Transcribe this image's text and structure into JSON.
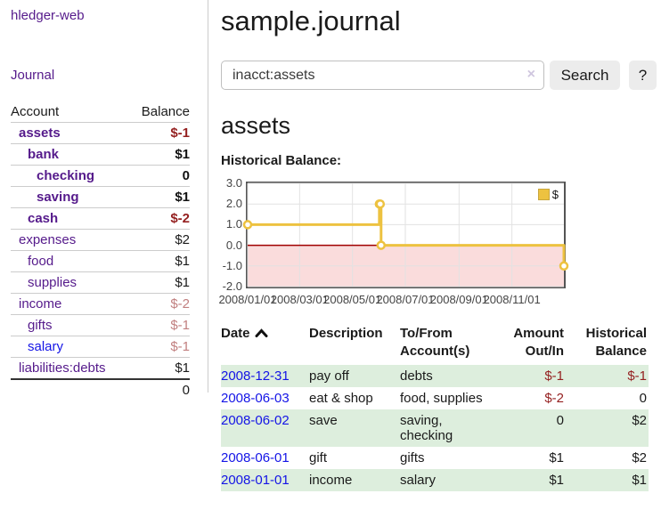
{
  "sidebar": {
    "app_title": "hledger-web",
    "journal_label": "Journal",
    "table": {
      "headers": [
        "Account",
        "Balance"
      ],
      "rows": [
        {
          "name": "assets",
          "indent": 1,
          "bold": true,
          "link": "purple",
          "balance": "$-1",
          "balance_style": "neg-strong"
        },
        {
          "name": "bank",
          "indent": 2,
          "bold": true,
          "link": "purple",
          "balance": "$1",
          "balance_style": "pos-strong"
        },
        {
          "name": "checking",
          "indent": 3,
          "bold": true,
          "link": "purple",
          "balance": "0",
          "balance_style": "pos-strong"
        },
        {
          "name": "saving",
          "indent": 3,
          "bold": true,
          "link": "purple",
          "balance": "$1",
          "balance_style": "pos-strong"
        },
        {
          "name": "cash",
          "indent": 2,
          "bold": true,
          "link": "purple",
          "balance": "$-2",
          "balance_style": "neg-strong"
        },
        {
          "name": "expenses",
          "indent": 1,
          "bold": false,
          "link": "purple",
          "balance": "$2",
          "balance_style": ""
        },
        {
          "name": "food",
          "indent": 2,
          "bold": false,
          "link": "purple",
          "balance": "$1",
          "balance_style": ""
        },
        {
          "name": "supplies",
          "indent": 2,
          "bold": false,
          "link": "purple",
          "balance": "$1",
          "balance_style": ""
        },
        {
          "name": "income",
          "indent": 1,
          "bold": false,
          "link": "purple",
          "balance": "$-2",
          "balance_style": "neg-dim"
        },
        {
          "name": "gifts",
          "indent": 2,
          "bold": false,
          "link": "purple",
          "balance": "$-1",
          "balance_style": "neg-dim"
        },
        {
          "name": "salary",
          "indent": 2,
          "bold": false,
          "link": "blue",
          "balance": "$-1",
          "balance_style": "neg-dim"
        },
        {
          "name": "liabilities:debts",
          "indent": 1,
          "bold": false,
          "link": "purple",
          "balance": "$1",
          "balance_style": ""
        }
      ],
      "total": "0"
    }
  },
  "header": {
    "title": "sample.journal"
  },
  "search": {
    "value": "inacct:assets",
    "clear_icon": "×",
    "button_label": "Search",
    "help_label": "?"
  },
  "main": {
    "account_heading": "assets",
    "chart_label": "Historical Balance:"
  },
  "chart_data": {
    "type": "line",
    "title": "Historical Balance",
    "step": true,
    "series": [
      {
        "name": "$",
        "points": [
          [
            "2008-01-01",
            1
          ],
          [
            "2008-06-01",
            2
          ],
          [
            "2008-06-02",
            2
          ],
          [
            "2008-06-03",
            0
          ],
          [
            "2008-12-31",
            -1
          ]
        ]
      }
    ],
    "xlim": [
      "2008-01-01",
      "2008-12-31"
    ],
    "ylim": [
      -2,
      3
    ],
    "yticks": [
      "3.0",
      "2.0",
      "1.0",
      "0.0",
      "-1.0",
      "-2.0"
    ],
    "xticks": [
      {
        "pos": "2008-01-01",
        "label": "2008/01/01"
      },
      {
        "pos": "2008-03-01",
        "label": "2008/03/01"
      },
      {
        "pos": "2008-05-01",
        "label": "2008/05/01"
      },
      {
        "pos": "2008-07-01",
        "label": "2008/07/01"
      },
      {
        "pos": "2008-09-01",
        "label": "2008/09/01"
      },
      {
        "pos": "2008-11-01",
        "label": "2008/11/01"
      }
    ],
    "legend": {
      "position": "top-right",
      "label": "$"
    },
    "grid": true,
    "colors": {
      "line": "#edc240",
      "negative_fill": "#fadcdc",
      "zero_line": "#a00000",
      "grid": "#e2e2e2",
      "border": "#545454"
    }
  },
  "transactions": {
    "columns": [
      {
        "line1": "Date",
        "line2": "",
        "align": "left",
        "sortable": true
      },
      {
        "line1": "Description",
        "line2": "",
        "align": "left",
        "sortable": false
      },
      {
        "line1": "To/From",
        "line2": "Account(s)",
        "align": "left",
        "sortable": false
      },
      {
        "line1": "Amount",
        "line2": "Out/In",
        "align": "right",
        "sortable": false
      },
      {
        "line1": "Historical",
        "line2": "Balance",
        "align": "right",
        "sortable": false
      }
    ],
    "rows": [
      {
        "date": "2008-12-31",
        "description": "pay off",
        "accounts": "debts",
        "amount": "$-1",
        "amount_neg": true,
        "balance": "$-1",
        "balance_neg": true
      },
      {
        "date": "2008-06-03",
        "description": "eat & shop",
        "accounts": "food, supplies",
        "amount": "$-2",
        "amount_neg": true,
        "balance": "0",
        "balance_neg": false
      },
      {
        "date": "2008-06-02",
        "description": "save",
        "accounts": "saving, checking",
        "amount": "0",
        "amount_neg": false,
        "balance": "$2",
        "balance_neg": false
      },
      {
        "date": "2008-06-01",
        "description": "gift",
        "accounts": "gifts",
        "amount": "$1",
        "amount_neg": false,
        "balance": "$2",
        "balance_neg": false
      },
      {
        "date": "2008-01-01",
        "description": "income",
        "accounts": "salary",
        "amount": "$1",
        "amount_neg": false,
        "balance": "$1",
        "balance_neg": false
      }
    ]
  }
}
